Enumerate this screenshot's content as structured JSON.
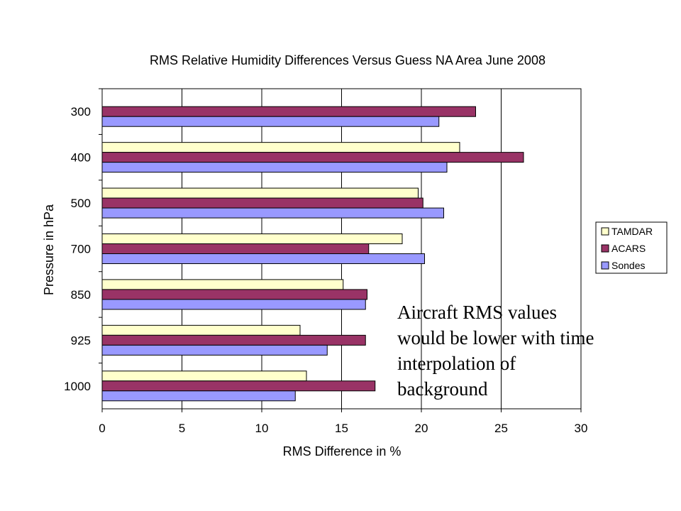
{
  "chart_data": {
    "type": "bar",
    "orientation": "horizontal",
    "title": "RMS Relative Humidity Differences Versus Guess NA Area June 2008",
    "xlabel": "RMS Difference in %",
    "ylabel": "Pressure in hPa",
    "categories": [
      "300",
      "400",
      "500",
      "700",
      "850",
      "925",
      "1000"
    ],
    "xlim": [
      0,
      30
    ],
    "xticks": [
      "0",
      "5",
      "10",
      "15",
      "20",
      "25",
      "30"
    ],
    "grid": "vertical",
    "legend_position": "right",
    "series": [
      {
        "name": "TAMDAR",
        "color": "#ffffcc",
        "values": [
          null,
          22.4,
          19.8,
          18.8,
          15.1,
          12.4,
          12.8
        ]
      },
      {
        "name": "ACARS",
        "color": "#993366",
        "values": [
          23.4,
          26.4,
          20.1,
          16.7,
          16.6,
          16.5,
          17.1
        ]
      },
      {
        "name": "Sondes",
        "color": "#9999ff",
        "values": [
          21.1,
          21.6,
          21.4,
          20.2,
          16.5,
          14.1,
          12.1
        ]
      }
    ]
  },
  "annotation": {
    "text": "Aircraft RMS values would be lower with time interpolation of background"
  }
}
